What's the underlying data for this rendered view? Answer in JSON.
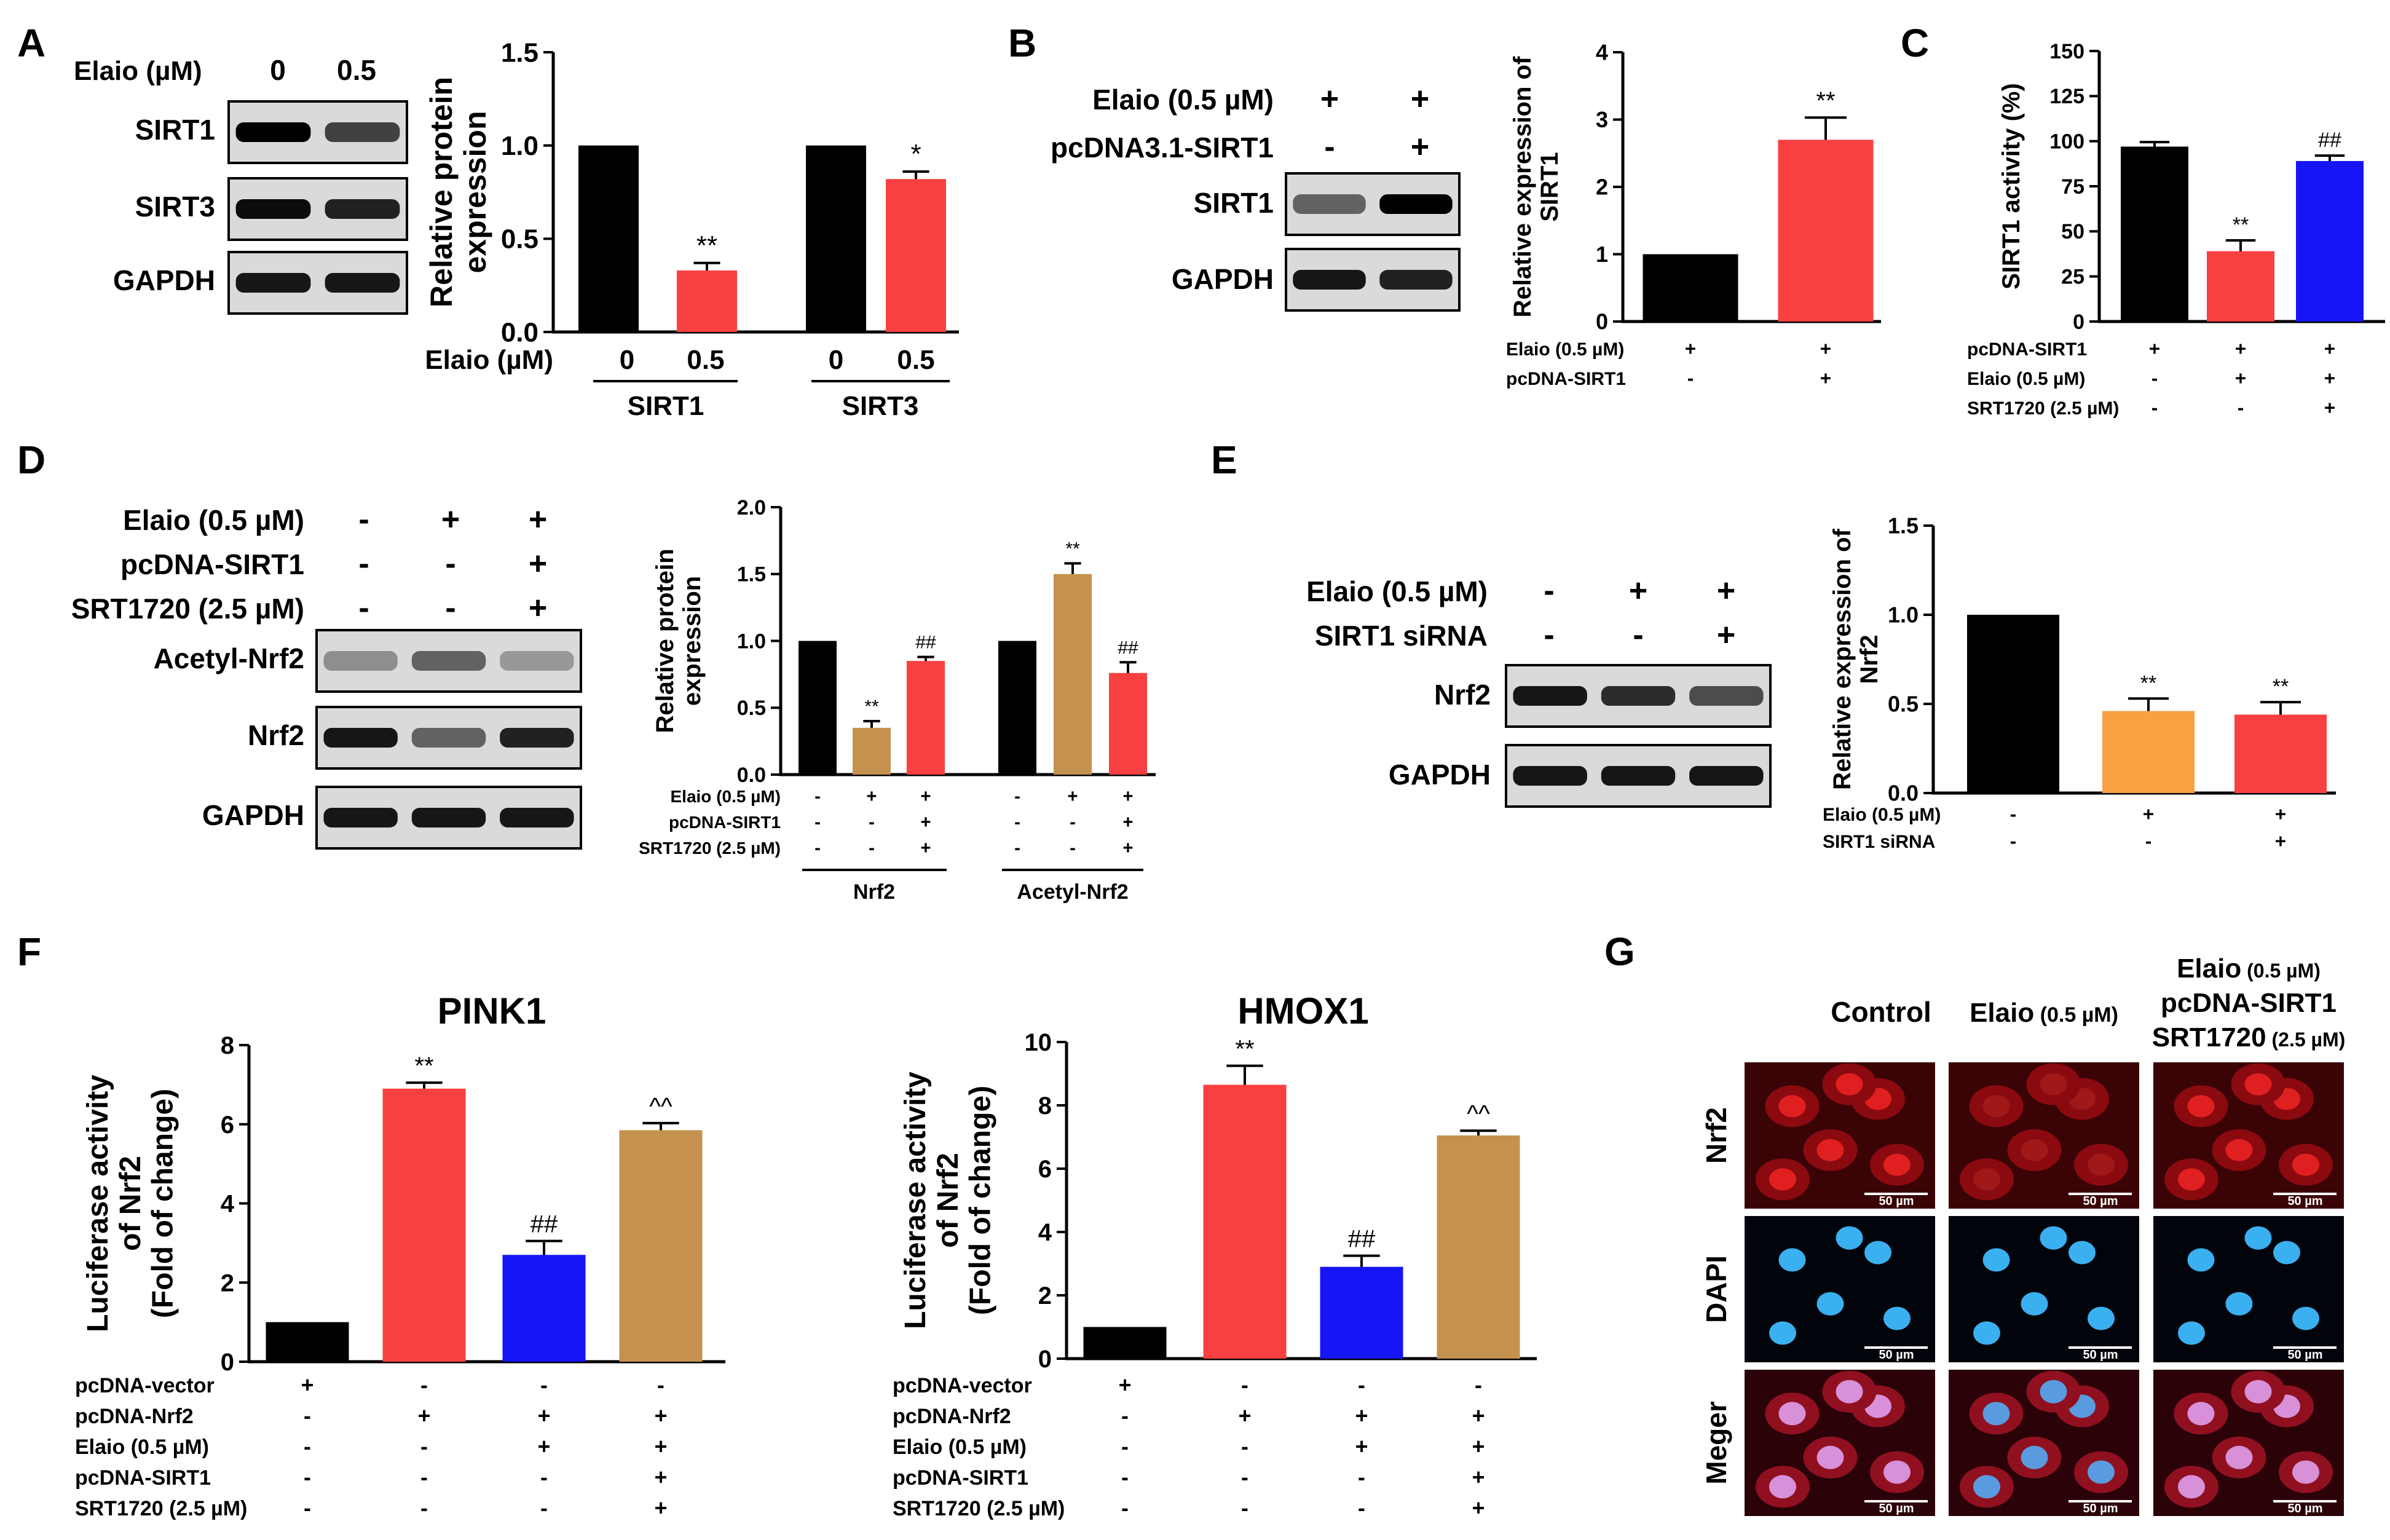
{
  "colors": {
    "black": "#000000",
    "red": "#f94040",
    "blue": "#1515f5",
    "tan": "#c4914f",
    "orange": "#f9a040",
    "grid_axis": "#000000",
    "nucleus": "#3ab0f0",
    "nrf2": "#e02020",
    "merge": "#d890d8"
  },
  "panels": {
    "A": "A",
    "B": "B",
    "C": "C",
    "D": "D",
    "E": "E",
    "F": "F",
    "G": "G"
  },
  "blots": {
    "A": {
      "header_label": "Elaio (µM)",
      "lanes": [
        "0",
        "0.5"
      ],
      "rows": [
        "SIRT1",
        "SIRT3",
        "GAPDH"
      ]
    },
    "B": {
      "conditions": [
        {
          "label": "Elaio (0.5 µM)",
          "signs": [
            "+",
            "+"
          ]
        },
        {
          "label": "pcDNA3.1-SIRT1",
          "signs": [
            "-",
            "+"
          ]
        }
      ],
      "rows": [
        "SIRT1",
        "GAPDH"
      ]
    },
    "D": {
      "conditions": [
        {
          "label": "Elaio (0.5 µM)",
          "signs": [
            "-",
            "+",
            "+"
          ]
        },
        {
          "label": "pcDNA-SIRT1",
          "signs": [
            "-",
            "-",
            "+"
          ]
        },
        {
          "label": "SRT1720 (2.5 µM)",
          "signs": [
            "-",
            "-",
            "+"
          ]
        }
      ],
      "rows": [
        "Acetyl-Nrf2",
        "Nrf2",
        "GAPDH"
      ]
    },
    "E": {
      "conditions": [
        {
          "label": "Elaio (0.5 µM)",
          "signs": [
            "-",
            "+",
            "+"
          ]
        },
        {
          "label": "SIRT1 siRNA",
          "signs": [
            "-",
            "-",
            "+"
          ]
        }
      ],
      "rows": [
        "Nrf2",
        "GAPDH"
      ]
    }
  },
  "chart_data": [
    {
      "id": "A",
      "type": "bar",
      "ylabel": "Relative protein expression",
      "ylim": [
        0,
        1.5
      ],
      "yticks": [
        "0.0",
        "0.5",
        "1.0",
        "1.5"
      ],
      "series": [
        {
          "name": "Elaio 0",
          "color": "black",
          "values": [
            1.0,
            1.0
          ]
        },
        {
          "name": "Elaio 0.5",
          "color": "red",
          "values": [
            0.33,
            0.82
          ],
          "errors": [
            0.04,
            0.04
          ],
          "sig": [
            "**",
            "*"
          ]
        }
      ],
      "categories": [
        "SIRT1",
        "SIRT3"
      ],
      "x_row_label": "Elaio (µM)",
      "x_ticks": [
        "0",
        "0.5",
        "0",
        "0.5"
      ]
    },
    {
      "id": "B",
      "type": "bar",
      "ylabel": "Relative expression of SIRT1",
      "ylim": [
        0,
        4
      ],
      "yticks": [
        "0",
        "1",
        "2",
        "3",
        "4"
      ],
      "values": [
        1.0,
        2.7
      ],
      "errors": [
        0,
        0.33
      ],
      "colors": [
        "black",
        "red"
      ],
      "sig": [
        "",
        "**"
      ],
      "condition_rows": [
        {
          "label": "Elaio (0.5 µM)",
          "signs": [
            "+",
            "+"
          ]
        },
        {
          "label": "pcDNA-SIRT1",
          "signs": [
            "-",
            "+"
          ]
        }
      ]
    },
    {
      "id": "C",
      "type": "bar",
      "ylabel": "SIRT1 activity (%)",
      "ylim": [
        0,
        150
      ],
      "yticks": [
        "0",
        "25",
        "50",
        "75",
        "100",
        "125",
        "150"
      ],
      "values": [
        97,
        39,
        89
      ],
      "errors": [
        2.5,
        6,
        3
      ],
      "colors": [
        "black",
        "red",
        "blue"
      ],
      "sig": [
        "",
        "**",
        "##"
      ],
      "condition_rows": [
        {
          "label": "pcDNA-SIRT1",
          "signs": [
            "+",
            "+",
            "+"
          ]
        },
        {
          "label": "Elaio (0.5 µM)",
          "signs": [
            "-",
            "+",
            "+"
          ]
        },
        {
          "label": "SRT1720 (2.5 µM)",
          "signs": [
            "-",
            "-",
            "+"
          ]
        }
      ]
    },
    {
      "id": "D",
      "type": "bar",
      "ylabel": "Relative protein expression",
      "ylim": [
        0,
        2.0
      ],
      "yticks": [
        "0.0",
        "0.5",
        "1.0",
        "1.5",
        "2.0"
      ],
      "groups": [
        {
          "name": "Nrf2",
          "values": [
            1.0,
            0.35,
            0.85
          ],
          "errors": [
            0,
            0.05,
            0.03
          ],
          "colors": [
            "black",
            "tan",
            "red"
          ],
          "sig": [
            "",
            "**",
            "##"
          ]
        },
        {
          "name": "Acetyl-Nrf2",
          "values": [
            1.0,
            1.5,
            0.76
          ],
          "errors": [
            0,
            0.08,
            0.08
          ],
          "colors": [
            "black",
            "tan",
            "red"
          ],
          "sig": [
            "",
            "**",
            "##"
          ]
        }
      ],
      "condition_rows": [
        {
          "label": "Elaio (0.5 µM)",
          "signs": [
            "-",
            "+",
            "+",
            "-",
            "+",
            "+"
          ]
        },
        {
          "label": "pcDNA-SIRT1",
          "signs": [
            "-",
            "-",
            "+",
            "-",
            "-",
            "+"
          ]
        },
        {
          "label": "SRT1720 (2.5 µM)",
          "signs": [
            "-",
            "-",
            "+",
            "-",
            "-",
            "+"
          ]
        }
      ]
    },
    {
      "id": "E",
      "type": "bar",
      "ylabel": "Relative expression of Nrf2",
      "ylim": [
        0,
        1.5
      ],
      "yticks": [
        "0.0",
        "0.5",
        "1.0",
        "1.5"
      ],
      "values": [
        1.0,
        0.46,
        0.44
      ],
      "errors": [
        0,
        0.07,
        0.07
      ],
      "colors": [
        "black",
        "orange",
        "red"
      ],
      "sig": [
        "",
        "**",
        "**"
      ],
      "condition_rows": [
        {
          "label": "Elaio (0.5 µM)",
          "signs": [
            "-",
            "+",
            "+"
          ]
        },
        {
          "label": "SIRT1 siRNA",
          "signs": [
            "-",
            "-",
            "+"
          ]
        }
      ]
    },
    {
      "id": "F1",
      "type": "bar",
      "title": "PINK1",
      "ylabel": "Luciferase activity of Nrf2 (Fold of change)",
      "ylim": [
        0,
        8
      ],
      "yticks": [
        "0",
        "2",
        "4",
        "6",
        "8"
      ],
      "values": [
        1.0,
        6.9,
        2.7,
        5.85
      ],
      "errors": [
        0,
        0.15,
        0.35,
        0.18
      ],
      "colors": [
        "black",
        "red",
        "blue",
        "tan"
      ],
      "sig": [
        "",
        "**",
        "##",
        "^^"
      ],
      "condition_rows": [
        {
          "label": "pcDNA-vector",
          "signs": [
            "+",
            "-",
            "-",
            "-"
          ]
        },
        {
          "label": "pcDNA-Nrf2",
          "signs": [
            "-",
            "+",
            "+",
            "+"
          ]
        },
        {
          "label": "Elaio (0.5 µM)",
          "signs": [
            "-",
            "-",
            "+",
            "+"
          ]
        },
        {
          "label": "pcDNA-SIRT1",
          "signs": [
            "-",
            "-",
            "-",
            "+"
          ]
        },
        {
          "label": "SRT1720 (2.5 µM)",
          "signs": [
            "-",
            "-",
            "-",
            "+"
          ]
        }
      ]
    },
    {
      "id": "F2",
      "type": "bar",
      "title": "HMOX1",
      "ylabel": "Luciferase activity of Nrf2 (Fold of change)",
      "ylim": [
        0,
        10
      ],
      "yticks": [
        "0",
        "2",
        "4",
        "6",
        "8",
        "10"
      ],
      "values": [
        1.0,
        8.65,
        2.9,
        7.05
      ],
      "errors": [
        0,
        0.6,
        0.35,
        0.15
      ],
      "colors": [
        "black",
        "red",
        "blue",
        "tan"
      ],
      "sig": [
        "",
        "**",
        "##",
        "^^"
      ],
      "condition_rows": [
        {
          "label": "pcDNA-vector",
          "signs": [
            "+",
            "-",
            "-",
            "-"
          ]
        },
        {
          "label": "pcDNA-Nrf2",
          "signs": [
            "-",
            "+",
            "+",
            "+"
          ]
        },
        {
          "label": "Elaio (0.5 µM)",
          "signs": [
            "-",
            "-",
            "+",
            "+"
          ]
        },
        {
          "label": "pcDNA-SIRT1",
          "signs": [
            "-",
            "-",
            "-",
            "+"
          ]
        },
        {
          "label": "SRT1720 (2.5 µM)",
          "signs": [
            "-",
            "-",
            "-",
            "+"
          ]
        }
      ]
    }
  ],
  "group_labels": {
    "A": [
      "SIRT1",
      "SIRT3"
    ],
    "D": [
      "Nrf2",
      "Acetyl-Nrf2"
    ]
  },
  "micrographs": {
    "columns": [
      {
        "title": "Control",
        "sub": ""
      },
      {
        "title": "Elaio",
        "sub": "(0.5 µM)"
      },
      {
        "title": "Elaio (0.5 µM) pcDNA-SIRT1 SRT1720 (2.5 µM)",
        "sub": ""
      }
    ],
    "col3_lines": [
      {
        "main": "Elaio",
        "sub": " (0.5 µM)"
      },
      {
        "main": "pcDNA-SIRT1",
        "sub": ""
      },
      {
        "main": "SRT1720",
        "sub": " (2.5 µM)"
      }
    ],
    "rows": [
      "Nrf2",
      "DAPI",
      "Meger"
    ],
    "scale": "50 µm"
  }
}
